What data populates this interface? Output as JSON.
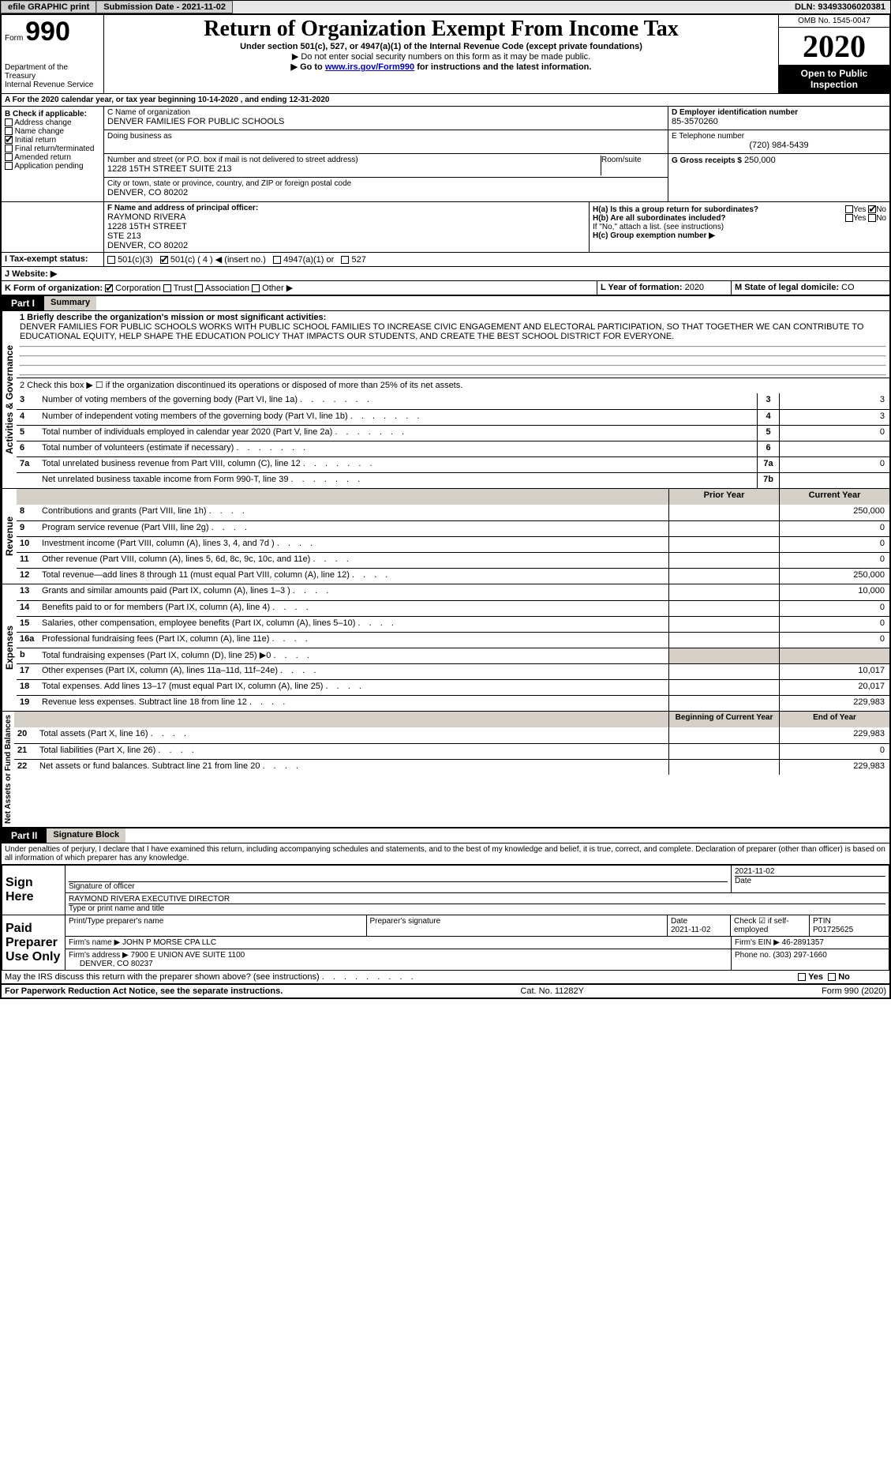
{
  "topbar": {
    "efile": "efile GRAPHIC print",
    "subdate_lbl": "Submission Date - 2021-11-02",
    "dln": "DLN: 93493306020381"
  },
  "header": {
    "form_lbl": "Form",
    "form_no": "990",
    "dept": "Department of the Treasury\nInternal Revenue Service",
    "title": "Return of Organization Exempt From Income Tax",
    "sub": "Under section 501(c), 527, or 4947(a)(1) of the Internal Revenue Code (except private foundations)",
    "note1": "▶ Do not enter social security numbers on this form as it may be made public.",
    "note2_pre": "▶ Go to ",
    "note2_link": "www.irs.gov/Form990",
    "note2_post": " for instructions and the latest information.",
    "omb": "OMB No. 1545-0047",
    "year": "2020",
    "inspect": "Open to Public Inspection"
  },
  "rowA": "A For the 2020 calendar year, or tax year beginning 10-14-2020 , and ending 12-31-2020",
  "boxB": {
    "hdr": "B Check if applicable:",
    "items": [
      "Address change",
      "Name change",
      "Initial return",
      "Final return/terminated",
      "Amended return",
      "Application pending"
    ],
    "checked_idx": 2
  },
  "boxC": {
    "lbl": "C Name of organization",
    "name": "DENVER FAMILIES FOR PUBLIC SCHOOLS",
    "dba_lbl": "Doing business as",
    "addr_lbl": "Number and street (or P.O. box if mail is not delivered to street address)",
    "addr": "1228 15TH STREET SUITE 213",
    "room_lbl": "Room/suite",
    "city_lbl": "City or town, state or province, country, and ZIP or foreign postal code",
    "city": "DENVER, CO  80202"
  },
  "boxD": {
    "lbl": "D Employer identification number",
    "val": "85-3570260"
  },
  "boxE": {
    "lbl": "E Telephone number",
    "val": "(720) 984-5439"
  },
  "boxG": {
    "lbl": "G Gross receipts $",
    "val": "250,000"
  },
  "boxF": {
    "lbl": "F  Name and address of principal officer:",
    "lines": [
      "RAYMOND RIVERA",
      "1228 15TH STREET",
      "STE 213",
      "DENVER, CO  80202"
    ]
  },
  "boxH": {
    "ha": "H(a)  Is this a group return for subordinates?",
    "hb": "H(b)  Are all subordinates included?",
    "hnote": "If \"No,\" attach a list. (see instructions)",
    "hc": "H(c)  Group exemption number ▶",
    "yes": "Yes",
    "no": "No"
  },
  "boxI": {
    "lbl": "I  Tax-exempt status:",
    "opts": [
      "501(c)(3)",
      "501(c) ( 4 ) ◀ (insert no.)",
      "4947(a)(1) or",
      "527"
    ]
  },
  "boxJ": {
    "lbl": "J  Website: ▶"
  },
  "boxK": {
    "lbl": "K Form of organization:",
    "opts": [
      "Corporation",
      "Trust",
      "Association",
      "Other ▶"
    ]
  },
  "boxL": {
    "lbl": "L Year of formation:",
    "val": "2020"
  },
  "boxM": {
    "lbl": "M State of legal domicile:",
    "val": "CO"
  },
  "part1": {
    "label": "Part I",
    "title": "Summary",
    "mission_lbl": "1  Briefly describe the organization's mission or most significant activities:",
    "mission": "DENVER FAMILIES FOR PUBLIC SCHOOLS WORKS WITH PUBLIC SCHOOL FAMILIES TO INCREASE CIVIC ENGAGEMENT AND ELECTORAL PARTICIPATION, SO THAT TOGETHER WE CAN CONTRIBUTE TO EDUCATIONAL EQUITY, HELP SHAPE THE EDUCATION POLICY THAT IMPACTS OUR STUDENTS, AND CREATE THE BEST SCHOOL DISTRICT FOR EVERYONE.",
    "line2": "2  Check this box ▶ ☐ if the organization discontinued its operations or disposed of more than 25% of its net assets.",
    "govlines": [
      {
        "n": "3",
        "d": "Number of voting members of the governing body (Part VI, line 1a)",
        "c": "3",
        "v": "3"
      },
      {
        "n": "4",
        "d": "Number of independent voting members of the governing body (Part VI, line 1b)",
        "c": "4",
        "v": "3"
      },
      {
        "n": "5",
        "d": "Total number of individuals employed in calendar year 2020 (Part V, line 2a)",
        "c": "5",
        "v": "0"
      },
      {
        "n": "6",
        "d": "Total number of volunteers (estimate if necessary)",
        "c": "6",
        "v": ""
      },
      {
        "n": "7a",
        "d": "Total unrelated business revenue from Part VIII, column (C), line 12",
        "c": "7a",
        "v": "0"
      },
      {
        "n": "",
        "d": "Net unrelated business taxable income from Form 990-T, line 39",
        "c": "7b",
        "v": ""
      }
    ],
    "py": "Prior Year",
    "cy": "Current Year",
    "revlines": [
      {
        "n": "8",
        "d": "Contributions and grants (Part VIII, line 1h)",
        "pv": "",
        "cv": "250,000"
      },
      {
        "n": "9",
        "d": "Program service revenue (Part VIII, line 2g)",
        "pv": "",
        "cv": "0"
      },
      {
        "n": "10",
        "d": "Investment income (Part VIII, column (A), lines 3, 4, and 7d )",
        "pv": "",
        "cv": "0"
      },
      {
        "n": "11",
        "d": "Other revenue (Part VIII, column (A), lines 5, 6d, 8c, 9c, 10c, and 11e)",
        "pv": "",
        "cv": "0"
      },
      {
        "n": "12",
        "d": "Total revenue—add lines 8 through 11 (must equal Part VIII, column (A), line 12)",
        "pv": "",
        "cv": "250,000"
      }
    ],
    "explines": [
      {
        "n": "13",
        "d": "Grants and similar amounts paid (Part IX, column (A), lines 1–3 )",
        "pv": "",
        "cv": "10,000"
      },
      {
        "n": "14",
        "d": "Benefits paid to or for members (Part IX, column (A), line 4)",
        "pv": "",
        "cv": "0"
      },
      {
        "n": "15",
        "d": "Salaries, other compensation, employee benefits (Part IX, column (A), lines 5–10)",
        "pv": "",
        "cv": "0"
      },
      {
        "n": "16a",
        "d": "Professional fundraising fees (Part IX, column (A), line 11e)",
        "pv": "",
        "cv": "0"
      },
      {
        "n": "b",
        "d": "Total fundraising expenses (Part IX, column (D), line 25) ▶0",
        "pv": "shade",
        "cv": "shade"
      },
      {
        "n": "17",
        "d": "Other expenses (Part IX, column (A), lines 11a–11d, 11f–24e)",
        "pv": "",
        "cv": "10,017"
      },
      {
        "n": "18",
        "d": "Total expenses. Add lines 13–17 (must equal Part IX, column (A), line 25)",
        "pv": "",
        "cv": "20,017"
      },
      {
        "n": "19",
        "d": "Revenue less expenses. Subtract line 18 from line 12",
        "pv": "",
        "cv": "229,983"
      }
    ],
    "bcy": "Beginning of Current Year",
    "ecy": "End of Year",
    "nalines": [
      {
        "n": "20",
        "d": "Total assets (Part X, line 16)",
        "pv": "",
        "cv": "229,983"
      },
      {
        "n": "21",
        "d": "Total liabilities (Part X, line 26)",
        "pv": "",
        "cv": "0"
      },
      {
        "n": "22",
        "d": "Net assets or fund balances. Subtract line 21 from line 20",
        "pv": "",
        "cv": "229,983"
      }
    ],
    "side_gov": "Activities & Governance",
    "side_rev": "Revenue",
    "side_exp": "Expenses",
    "side_na": "Net Assets or Fund Balances"
  },
  "part2": {
    "label": "Part II",
    "title": "Signature Block",
    "decl": "Under penalties of perjury, I declare that I have examined this return, including accompanying schedules and statements, and to the best of my knowledge and belief, it is true, correct, and complete. Declaration of preparer (other than officer) is based on all information of which preparer has any knowledge.",
    "sign_here": "Sign Here",
    "sig_officer": "Signature of officer",
    "sig_date": "2021-11-02",
    "date_lbl": "Date",
    "officer_name": "RAYMOND RIVERA  EXECUTIVE DIRECTOR",
    "type_name": "Type or print name and title",
    "paid": "Paid Preparer Use Only",
    "prep_name_lbl": "Print/Type preparer's name",
    "prep_sig_lbl": "Preparer's signature",
    "prep_date": "2021-11-02",
    "self_emp": "Check ☑ if self-employed",
    "ptin_lbl": "PTIN",
    "ptin": "P01725625",
    "firm_name_lbl": "Firm's name  ▶",
    "firm_name": "JOHN P MORSE CPA LLC",
    "firm_ein_lbl": "Firm's EIN ▶",
    "firm_ein": "46-2891357",
    "firm_addr_lbl": "Firm's address ▶",
    "firm_addr1": "7900 E UNION AVE SUITE 1100",
    "firm_addr2": "DENVER, CO  80237",
    "phone_lbl": "Phone no.",
    "phone": "(303) 297-1660",
    "discuss": "May the IRS discuss this return with the preparer shown above? (see instructions)"
  },
  "footer": {
    "pra": "For Paperwork Reduction Act Notice, see the separate instructions.",
    "cat": "Cat. No. 11282Y",
    "form": "Form 990 (2020)"
  }
}
